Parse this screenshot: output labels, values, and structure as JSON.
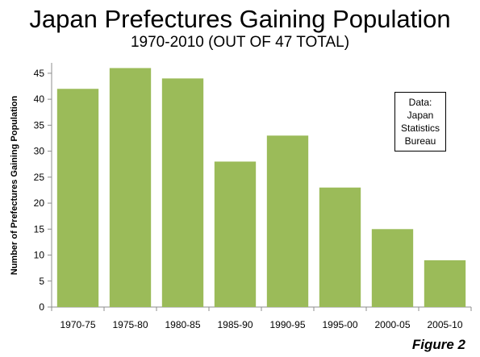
{
  "chart_data": {
    "type": "bar",
    "title": "Japan Prefectures Gaining Population",
    "subtitle": "1970-2010 (OUT OF 47 TOTAL)",
    "xlabel": "",
    "ylabel": "Number of Prefectures Gaining Population",
    "categories": [
      "1970-75",
      "1975-80",
      "1980-85",
      "1985-90",
      "1990-95",
      "1995-00",
      "2000-05",
      "2005-10"
    ],
    "values": [
      42,
      46,
      44,
      28,
      33,
      23,
      15,
      9
    ],
    "ylim": [
      0,
      47
    ],
    "yticks": [
      0,
      5,
      10,
      15,
      20,
      25,
      30,
      35,
      40,
      45
    ],
    "grid": false,
    "bar_color": "#9bbb59",
    "annotation": [
      "Data:",
      "Japan",
      "Statistics",
      "Bureau"
    ],
    "figure_label": "Figure 2"
  }
}
